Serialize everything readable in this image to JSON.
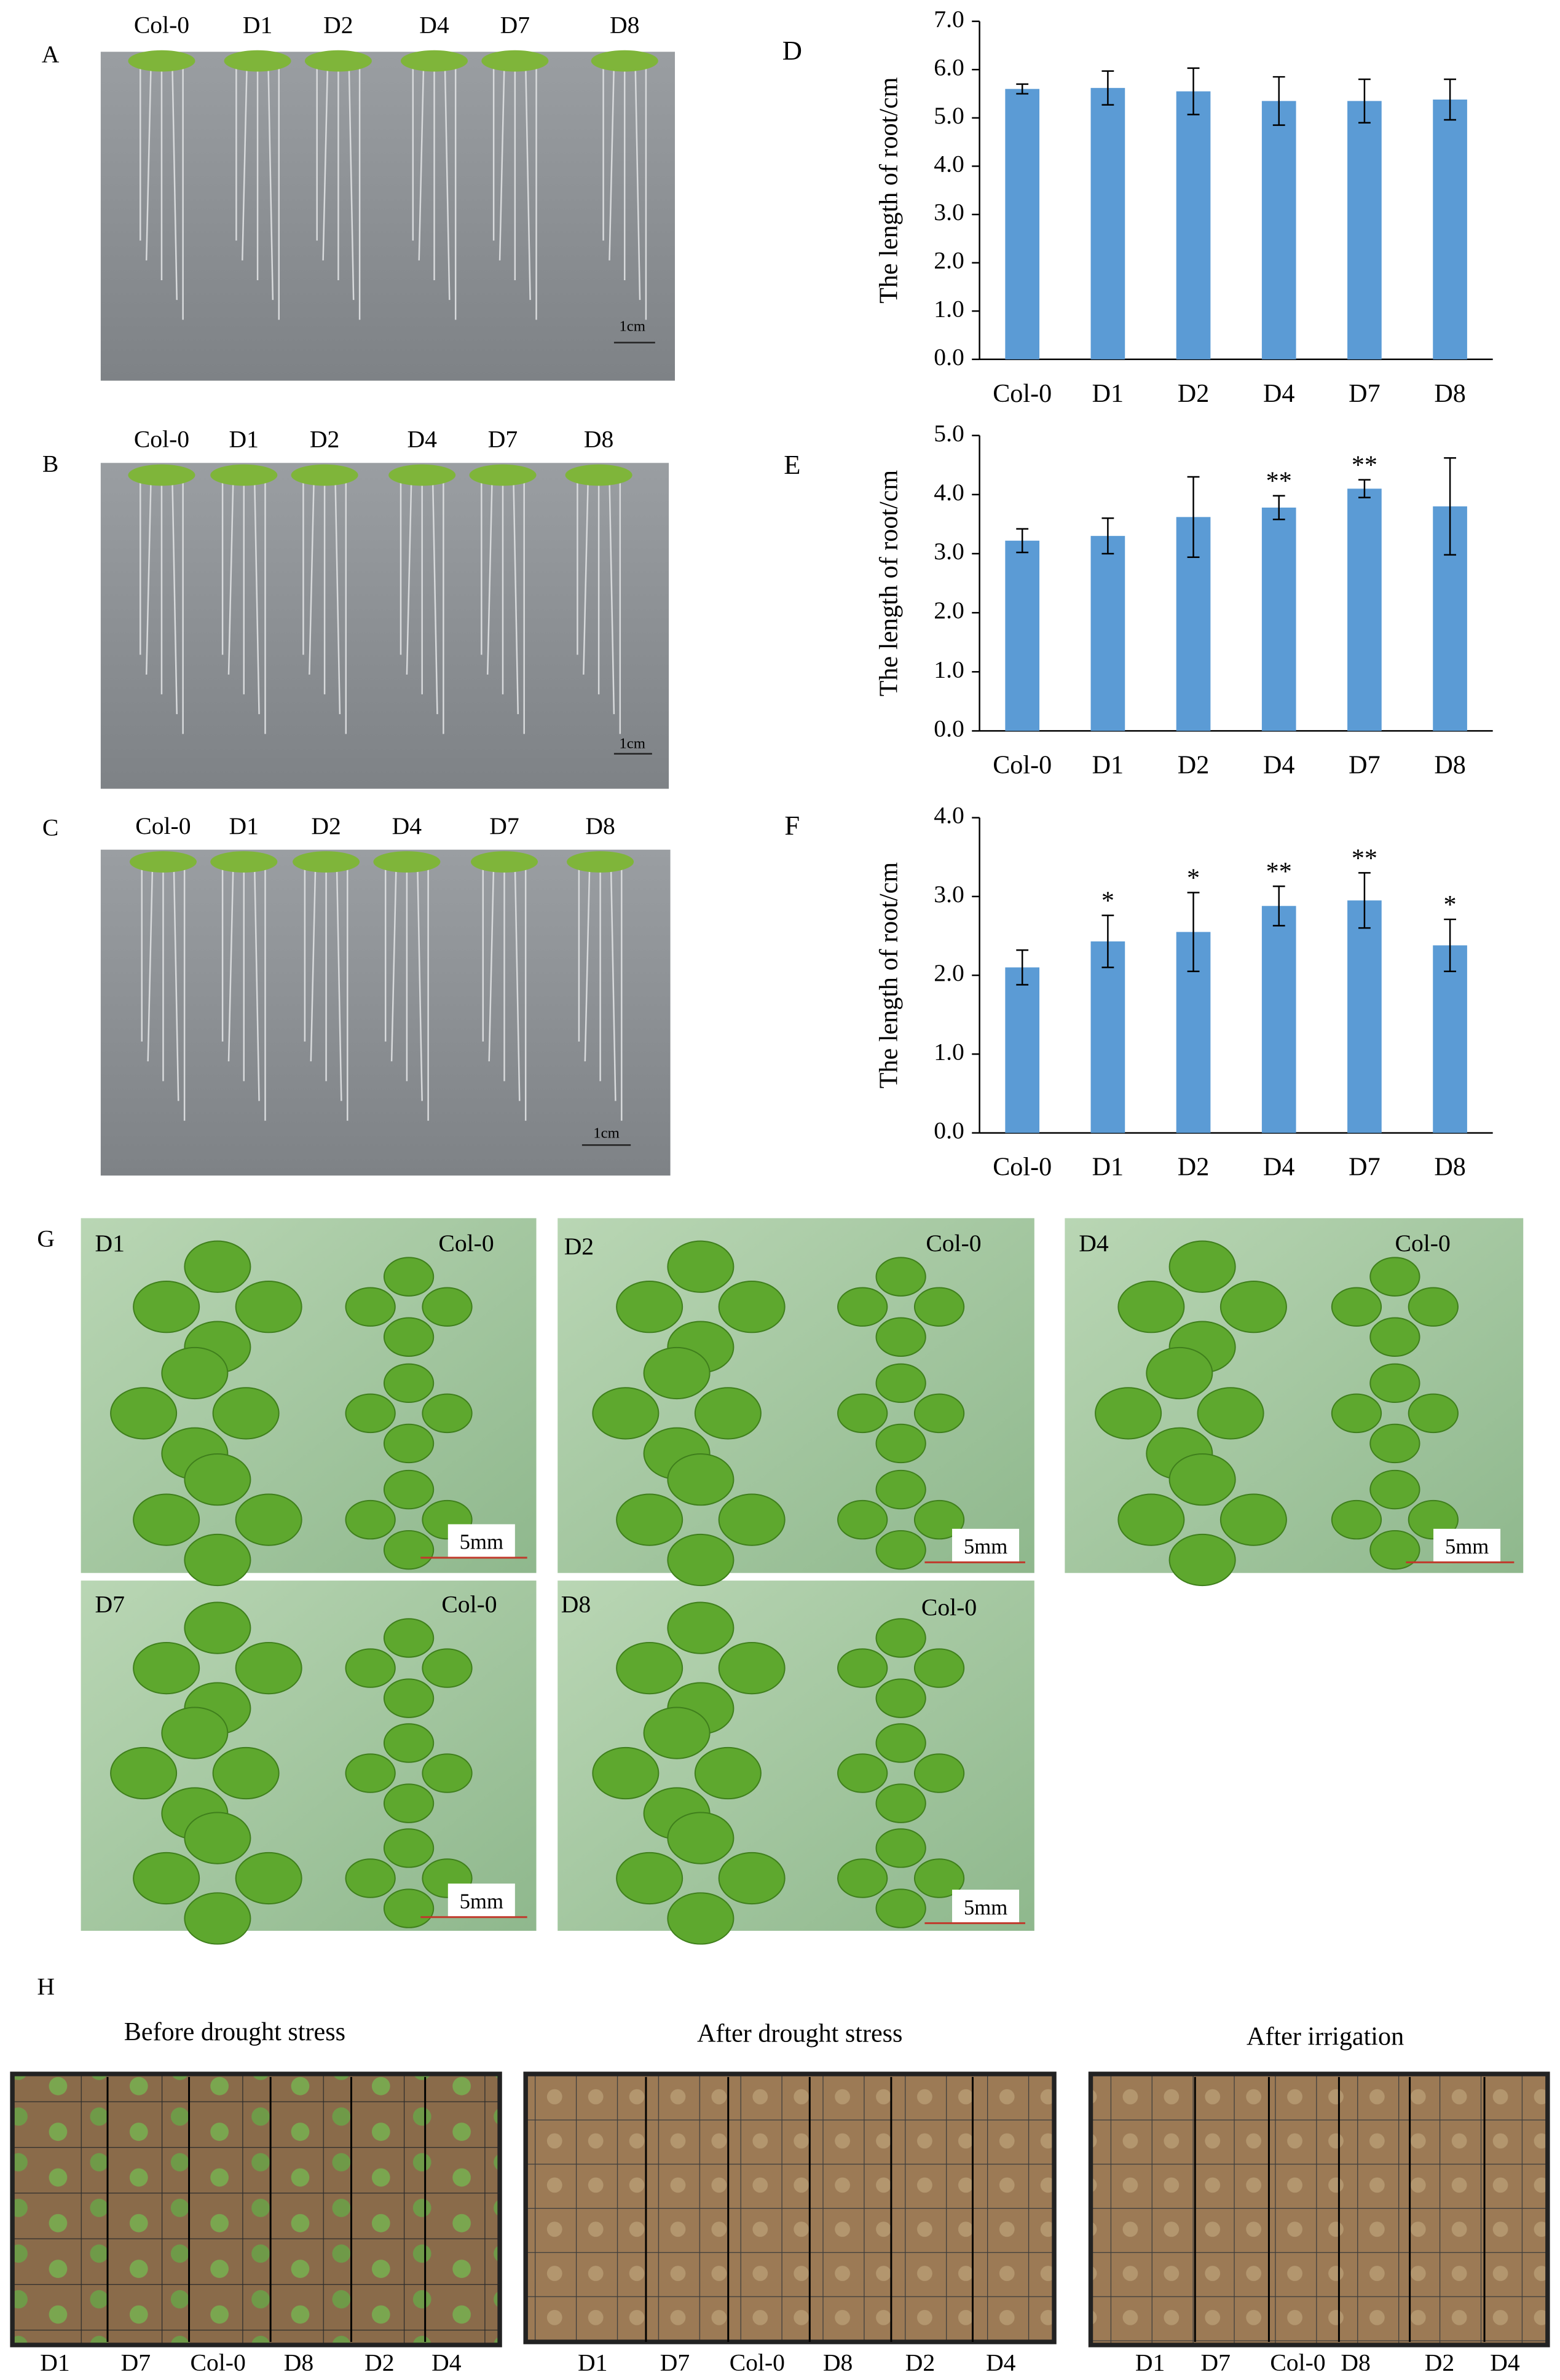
{
  "chart_data": [
    {
      "type": "bar",
      "panel_label": "D",
      "y_label": "The length of root/cm",
      "color": "#5b9bd5",
      "categories": [
        "Col-0",
        "D1",
        "D2",
        "D4",
        "D7",
        "D8"
      ],
      "values": [
        5.6,
        5.62,
        5.55,
        5.35,
        5.35,
        5.38
      ],
      "errors": [
        0.1,
        0.35,
        0.48,
        0.5,
        0.45,
        0.42
      ],
      "ylim": [
        0,
        7
      ],
      "yticks": [
        {
          "value": 0,
          "label": "0.0"
        },
        {
          "value": 1,
          "label": "1.0"
        },
        {
          "value": 2,
          "label": "2.0"
        },
        {
          "value": 3,
          "label": "3.0"
        },
        {
          "value": 4,
          "label": "4.0"
        },
        {
          "value": 5,
          "label": "5.0"
        },
        {
          "value": 6,
          "label": "6.0"
        },
        {
          "value": 7,
          "label": "7.0"
        }
      ]
    },
    {
      "type": "bar",
      "panel_label": "E",
      "y_label": "The length of root/cm",
      "color": "#5b9bd5",
      "categories": [
        "Col-0",
        "D1",
        "D2",
        "D4",
        "D7",
        "D8"
      ],
      "values": [
        3.22,
        3.3,
        3.62,
        3.78,
        4.1,
        3.8
      ],
      "errors": [
        0.2,
        0.3,
        0.68,
        0.2,
        0.15,
        0.82
      ],
      "significance": [
        null,
        null,
        null,
        "**",
        "**",
        null
      ],
      "ylim": [
        0,
        5
      ],
      "yticks": [
        {
          "value": 0,
          "label": "0.0"
        },
        {
          "value": 1,
          "label": "1.0"
        },
        {
          "value": 2,
          "label": "2.0"
        },
        {
          "value": 3,
          "label": "3.0"
        },
        {
          "value": 4,
          "label": "4.0"
        },
        {
          "value": 5,
          "label": "5.0"
        }
      ]
    },
    {
      "type": "bar",
      "panel_label": "F",
      "y_label": "The length of root/cm",
      "color": "#5b9bd5",
      "categories": [
        "Col-0",
        "D1",
        "D2",
        "D4",
        "D7",
        "D8"
      ],
      "values": [
        2.1,
        2.43,
        2.55,
        2.88,
        2.95,
        2.38
      ],
      "errors": [
        0.22,
        0.33,
        0.5,
        0.25,
        0.35,
        0.33
      ],
      "significance": [
        null,
        "*",
        "*",
        "**",
        "**",
        "*"
      ],
      "ylim": [
        0,
        4
      ],
      "yticks": [
        {
          "value": 0,
          "label": "0.0"
        },
        {
          "value": 1,
          "label": "1.0"
        },
        {
          "value": 2,
          "label": "2.0"
        },
        {
          "value": 3,
          "label": "3.0"
        },
        {
          "value": 4,
          "label": "4.0"
        }
      ]
    }
  ],
  "root_photos": [
    {
      "label": "A",
      "genotypes": [
        "Col-0",
        "D1",
        "D2",
        "D4",
        "D7",
        "D8"
      ],
      "scale_bar": "1cm"
    },
    {
      "label": "B",
      "genotypes": [
        "Col-0",
        "D1",
        "D2",
        "D4",
        "D7",
        "D8"
      ],
      "scale_bar": "1cm"
    },
    {
      "label": "C",
      "genotypes": [
        "Col-0",
        "D1",
        "D2",
        "D4",
        "D7",
        "D8"
      ],
      "scale_bar": "1cm"
    }
  ],
  "leaf_photos": {
    "label": "G",
    "images": [
      {
        "line": "D1",
        "control": "Col-0",
        "scale_bar": "5mm"
      },
      {
        "line": "D2",
        "control": "Col-0",
        "scale_bar": "5mm"
      },
      {
        "line": "D4",
        "control": "Col-0",
        "scale_bar": "5mm"
      },
      {
        "line": "D7",
        "control": "Col-0",
        "scale_bar": "5mm"
      },
      {
        "line": "D8",
        "control": "Col-0",
        "scale_bar": "5mm"
      }
    ]
  },
  "drought": {
    "label": "H",
    "trays": [
      {
        "title": "Before drought stress",
        "genotypes": [
          "D1",
          "D7",
          "Col-0",
          "D8",
          "D2",
          "D4"
        ]
      },
      {
        "title": "After drought stress",
        "genotypes": [
          "D1",
          "D7",
          "Col-0",
          "D8",
          "D2",
          "D4"
        ]
      },
      {
        "title": "After irrigation",
        "genotypes": [
          "D1",
          "D7",
          "Col-0",
          "D8",
          "D2",
          "D4"
        ]
      }
    ]
  }
}
